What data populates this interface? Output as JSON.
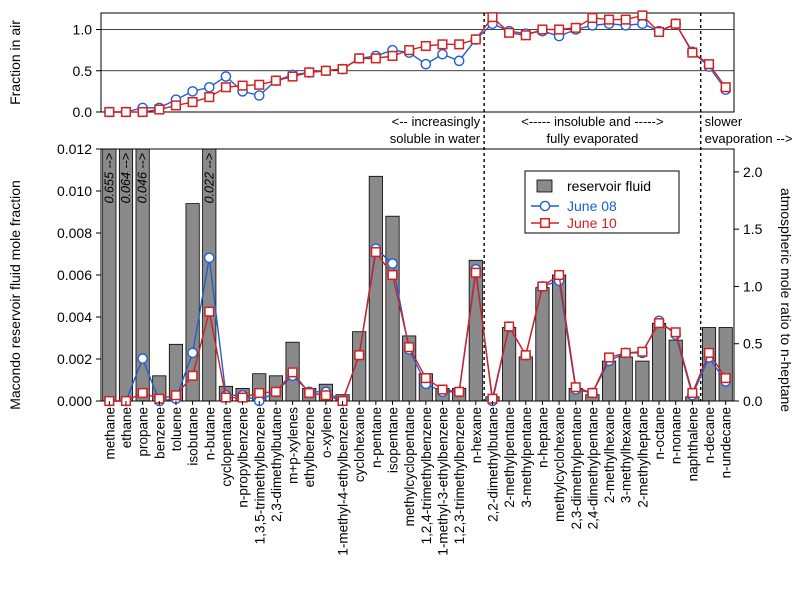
{
  "chart_data": [
    {
      "type": "line",
      "ylabel": "Fraction in air",
      "ylim": [
        0,
        1.2
      ],
      "yticks": [
        "0.0",
        "0.5",
        "1.0"
      ],
      "grid": true,
      "categories": [
        "methane",
        "ethane",
        "propane",
        "benzene",
        "toluene",
        "isobutane",
        "n-butane",
        "cyclopentane",
        "n-propylbenzene",
        "1,3,5-trimethylbenzene",
        "2,3-dimethylbutane",
        "m+p-xylenes",
        "ethylbenzene",
        "o-xylene",
        "1-methyl-4-ethylbenzene",
        "cyclohexane",
        "n-pentane",
        "isopentane",
        "methylcyclopentane",
        "1,2,4-trimethylbenzene",
        "1-methyl-3-ethylbenzene",
        "1,2,3-trimethylbenzene",
        "n-hexane",
        "2,2-dimethylbutane",
        "2-methylpentane",
        "3-methylpentane",
        "n-heptane",
        "methylcyclohexane",
        "2,3-dimethylpentane",
        "2,4-dimethylpentane",
        "2-methylhexane",
        "3-methylhexane",
        "2-methylheptane",
        "n-octane",
        "n-nonane",
        "naphthalene",
        "n-decane",
        "n-undecane"
      ],
      "series": [
        {
          "name": "June 08",
          "color": "#1f5fd6",
          "marker": "circle",
          "values": [
            0.0,
            0.0,
            0.05,
            0.05,
            0.15,
            0.25,
            0.3,
            0.43,
            0.25,
            0.2,
            0.38,
            0.45,
            0.48,
            0.5,
            0.52,
            0.65,
            0.68,
            0.75,
            0.72,
            0.58,
            0.7,
            0.62,
            0.88,
            1.07,
            0.98,
            0.95,
            0.98,
            0.92,
            1.0,
            1.05,
            1.07,
            1.05,
            1.07,
            0.98,
            1.07,
            0.73,
            0.55,
            0.27
          ]
        },
        {
          "name": "June 10",
          "color": "#d42020",
          "marker": "square",
          "values": [
            0.0,
            0.0,
            0.0,
            0.03,
            0.08,
            0.12,
            0.18,
            0.3,
            0.32,
            0.33,
            0.38,
            0.43,
            0.48,
            0.5,
            0.52,
            0.65,
            0.65,
            0.68,
            0.75,
            0.8,
            0.82,
            0.82,
            0.88,
            1.15,
            0.96,
            0.93,
            1.0,
            1.0,
            1.02,
            1.14,
            1.12,
            1.12,
            1.17,
            0.97,
            1.07,
            0.72,
            0.58,
            0.3
          ]
        }
      ],
      "annotations": [
        {
          "line1": "<-- increasingly",
          "line2": "soluble in water"
        },
        {
          "line1": "<-----     insoluble and     ----->",
          "line2": "fully evaporated"
        },
        {
          "line1": "slower",
          "line2": "evaporation -->"
        }
      ],
      "dividers_after_index": [
        22,
        35
      ]
    },
    {
      "type": "bar",
      "ylabel": "Macondo reservoir fluid mole fraction",
      "y2label": "atmospheric mole ratio to n-heptane",
      "ylim": [
        0,
        0.012
      ],
      "yticks": [
        "0.000",
        "0.002",
        "0.004",
        "0.006",
        "0.008",
        "0.010",
        "0.012"
      ],
      "y2lim": [
        0,
        2.2
      ],
      "y2ticks": [
        "0.0",
        "0.5",
        "1.0",
        "1.5",
        "2.0"
      ],
      "legend_position": "top-right",
      "categories": [
        "methane",
        "ethane",
        "propane",
        "benzene",
        "toluene",
        "isobutane",
        "n-butane",
        "cyclopentane",
        "n-propylbenzene",
        "1,3,5-trimethylbenzene",
        "2,3-dimethylbutane",
        "m+p-xylenes",
        "ethylbenzene",
        "o-xylene",
        "1-methyl-4-ethylbenzene",
        "cyclohexane",
        "n-pentane",
        "isopentane",
        "methylcyclopentane",
        "1,2,4-trimethylbenzene",
        "1-methyl-3-ethylbenzene",
        "1,2,3-trimethylbenzene",
        "n-hexane",
        "2,2-dimethylbutane",
        "2-methylpentane",
        "3-methylpentane",
        "n-heptane",
        "methylcyclohexane",
        "2,3-dimethylpentane",
        "2,4-dimethylpentane",
        "2-methylhexane",
        "3-methylhexane",
        "2-methylheptane",
        "n-octane",
        "n-nonane",
        "naphthalene",
        "n-decane",
        "n-undecane"
      ],
      "bars": {
        "name": "reservoir fluid",
        "color": "#8a8a8a",
        "values": [
          0.655,
          0.064,
          0.046,
          0.0012,
          0.0027,
          0.0094,
          0.022,
          0.0007,
          0.0006,
          0.0013,
          0.0012,
          0.0028,
          0.0006,
          0.0008,
          0.0003,
          0.0033,
          0.0107,
          0.0088,
          0.0031,
          0.0013,
          0.0006,
          0.0006,
          0.0067,
          0.0002,
          0.0035,
          0.0021,
          0.0054,
          0.006,
          0.0006,
          0.0003,
          0.0019,
          0.0021,
          0.0019,
          0.0037,
          0.0029,
          0.0002,
          0.0035,
          0.0035
        ]
      },
      "offscale_labels": [
        {
          "index": 0,
          "text": "0.655 -->"
        },
        {
          "index": 1,
          "text": "0.064 -->"
        },
        {
          "index": 2,
          "text": "0.046 -->"
        },
        {
          "index": 6,
          "text": "0.022 -->"
        }
      ],
      "series": [
        {
          "name": "June 08",
          "color": "#1f5fd6",
          "marker": "circle",
          "values": [
            0.0,
            0.0,
            0.37,
            0.0,
            0.02,
            0.42,
            1.25,
            0.05,
            0.05,
            0.0,
            0.08,
            0.22,
            0.08,
            0.08,
            0.0,
            0.4,
            1.33,
            1.2,
            0.45,
            0.15,
            0.08,
            0.08,
            1.15,
            0.0,
            0.65,
            0.4,
            1.0,
            1.05,
            0.1,
            0.07,
            0.35,
            0.42,
            0.42,
            0.7,
            0.58,
            0.05,
            0.38,
            0.17
          ]
        },
        {
          "name": "June 10",
          "color": "#d42020",
          "marker": "square",
          "values": [
            0.0,
            0.0,
            0.07,
            0.02,
            0.05,
            0.22,
            0.78,
            0.03,
            0.03,
            0.07,
            0.08,
            0.25,
            0.07,
            0.05,
            0.0,
            0.4,
            1.3,
            1.1,
            0.47,
            0.2,
            0.1,
            0.08,
            1.12,
            0.02,
            0.65,
            0.4,
            1.0,
            1.1,
            0.12,
            0.07,
            0.38,
            0.42,
            0.43,
            0.68,
            0.6,
            0.07,
            0.42,
            0.2
          ]
        }
      ],
      "dividers_after_index": [
        22,
        35
      ]
    }
  ]
}
